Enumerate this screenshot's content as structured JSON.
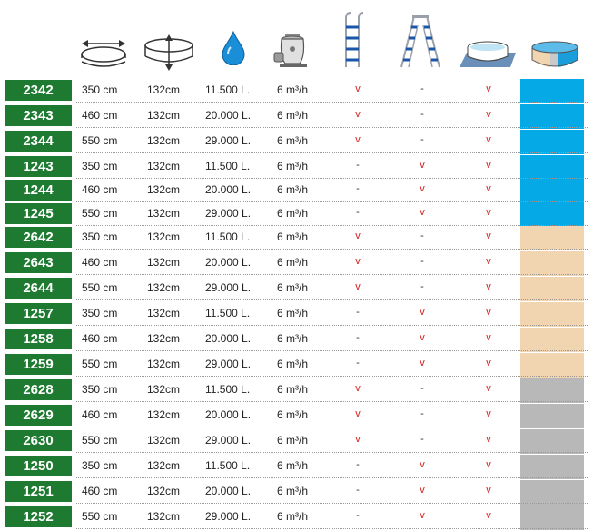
{
  "header": {
    "icons": [
      {
        "name": "diameter-icon"
      },
      {
        "name": "height-icon"
      },
      {
        "name": "water-volume-icon"
      },
      {
        "name": "sand-filter-pump-icon"
      },
      {
        "name": "single-ladder-icon"
      },
      {
        "name": "a-frame-ladder-icon"
      },
      {
        "name": "ground-cloth-icon"
      },
      {
        "name": "pool-liner-color-icon"
      }
    ]
  },
  "colors": {
    "code_bg": "#1e7a30",
    "check": "#d41a1a",
    "blue": "#04a9e6",
    "sand": "#f1d5b1",
    "grey": "#b8b8b8"
  },
  "rows": [
    {
      "code": "2342",
      "diameter": "350 cm",
      "height": "132cm",
      "volume": "11.500 L.",
      "pump": "6 m³/h",
      "ladder": "v",
      "a_ladder": "-",
      "cloth": "v",
      "color": "blue"
    },
    {
      "code": "2343",
      "diameter": "460 cm",
      "height": "132cm",
      "volume": "20.000 L.",
      "pump": "6 m³/h",
      "ladder": "v",
      "a_ladder": "-",
      "cloth": "v",
      "color": "blue"
    },
    {
      "code": "2344",
      "diameter": "550 cm",
      "height": "132cm",
      "volume": "29.000 L.",
      "pump": "6 m³/h",
      "ladder": "v",
      "a_ladder": "-",
      "cloth": "v",
      "color": "blue"
    },
    {
      "code": "1243",
      "diameter": "350 cm",
      "height": "132cm",
      "volume": "11.500 L.",
      "pump": "6 m³/h",
      "ladder": "-",
      "a_ladder": "v",
      "cloth": "v",
      "color": "blue"
    },
    {
      "code": "1244",
      "diameter": "460 cm",
      "height": "132cm",
      "volume": "20.000 L.",
      "pump": "6 m³/h",
      "ladder": "-",
      "a_ladder": "v",
      "cloth": "v",
      "color": "blue"
    },
    {
      "code": "1245",
      "diameter": "550 cm",
      "height": "132cm",
      "volume": "29.000 L.",
      "pump": "6 m³/h",
      "ladder": "-",
      "a_ladder": "v",
      "cloth": "v",
      "color": "blue"
    },
    {
      "code": "2642",
      "diameter": "350 cm",
      "height": "132cm",
      "volume": "11.500 L.",
      "pump": "6 m³/h",
      "ladder": "v",
      "a_ladder": "-",
      "cloth": "v",
      "color": "sand"
    },
    {
      "code": "2643",
      "diameter": "460 cm",
      "height": "132cm",
      "volume": "20.000 L.",
      "pump": "6 m³/h",
      "ladder": "v",
      "a_ladder": "-",
      "cloth": "v",
      "color": "sand"
    },
    {
      "code": "2644",
      "diameter": "550 cm",
      "height": "132cm",
      "volume": "29.000 L.",
      "pump": "6 m³/h",
      "ladder": "v",
      "a_ladder": "-",
      "cloth": "v",
      "color": "sand"
    },
    {
      "code": "1257",
      "diameter": "350 cm",
      "height": "132cm",
      "volume": "11.500 L.",
      "pump": "6 m³/h",
      "ladder": "-",
      "a_ladder": "v",
      "cloth": "v",
      "color": "sand"
    },
    {
      "code": "1258",
      "diameter": "460 cm",
      "height": "132cm",
      "volume": "20.000 L.",
      "pump": "6 m³/h",
      "ladder": "-",
      "a_ladder": "v",
      "cloth": "v",
      "color": "sand"
    },
    {
      "code": "1259",
      "diameter": "550 cm",
      "height": "132cm",
      "volume": "29.000 L.",
      "pump": "6 m³/h",
      "ladder": "-",
      "a_ladder": "v",
      "cloth": "v",
      "color": "sand"
    },
    {
      "code": "2628",
      "diameter": "350 cm",
      "height": "132cm",
      "volume": "11.500 L.",
      "pump": "6 m³/h",
      "ladder": "v",
      "a_ladder": "-",
      "cloth": "v",
      "color": "grey"
    },
    {
      "code": "2629",
      "diameter": "460 cm",
      "height": "132cm",
      "volume": "20.000 L.",
      "pump": "6 m³/h",
      "ladder": "v",
      "a_ladder": "-",
      "cloth": "v",
      "color": "grey"
    },
    {
      "code": "2630",
      "diameter": "550 cm",
      "height": "132cm",
      "volume": "29.000 L.",
      "pump": "6 m³/h",
      "ladder": "v",
      "a_ladder": "-",
      "cloth": "v",
      "color": "grey"
    },
    {
      "code": "1250",
      "diameter": "350 cm",
      "height": "132cm",
      "volume": "11.500 L.",
      "pump": "6 m³/h",
      "ladder": "-",
      "a_ladder": "v",
      "cloth": "v",
      "color": "grey"
    },
    {
      "code": "1251",
      "diameter": "460 cm",
      "height": "132cm",
      "volume": "20.000 L.",
      "pump": "6 m³/h",
      "ladder": "-",
      "a_ladder": "v",
      "cloth": "v",
      "color": "grey"
    },
    {
      "code": "1252",
      "diameter": "550 cm",
      "height": "132cm",
      "volume": "29.000 L.",
      "pump": "6 m³/h",
      "ladder": "-",
      "a_ladder": "v",
      "cloth": "v",
      "color": "grey"
    }
  ]
}
